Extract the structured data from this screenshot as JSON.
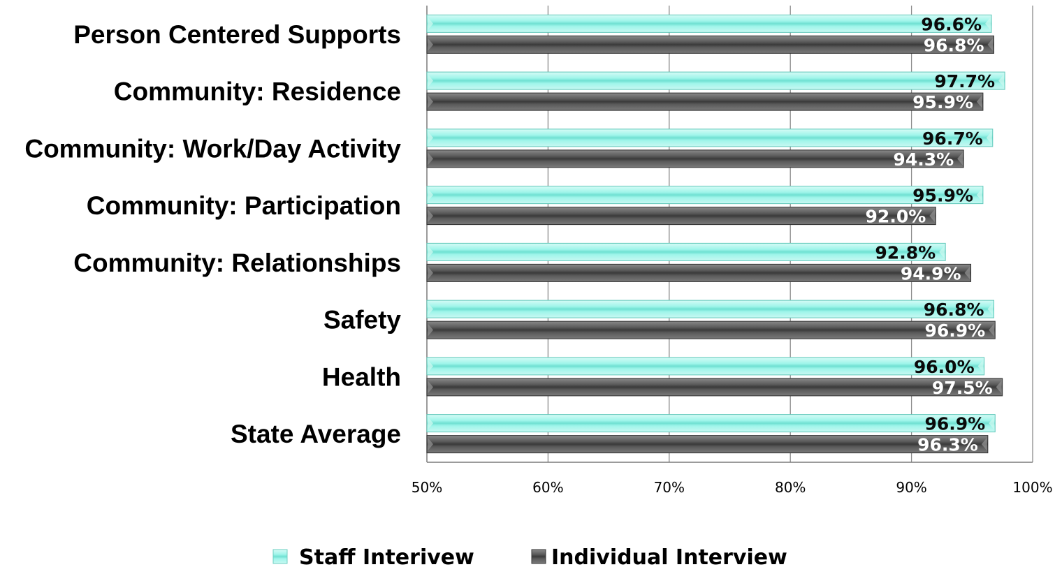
{
  "chart_data": {
    "type": "bar",
    "orientation": "horizontal",
    "categories": [
      "Person Centered Supports",
      "Community:  Residence",
      "Community: Work/Day Activity",
      "Community: Participation",
      "Community: Relationships",
      "Safety",
      "Health",
      "State Average"
    ],
    "series": [
      {
        "name": "Staff Interivew",
        "color": "#8ff0e4",
        "values": [
          96.6,
          97.7,
          96.7,
          95.9,
          92.8,
          96.8,
          96.0,
          96.9
        ],
        "labels": [
          "96.6%",
          "97.7%",
          "96.7%",
          "95.9%",
          "92.8%",
          "96.8%",
          "96.0%",
          "96.9%"
        ]
      },
      {
        "name": "Individual Interview",
        "color": "#5e5e5e",
        "values": [
          96.8,
          95.9,
          94.3,
          92.0,
          94.9,
          96.9,
          97.5,
          96.3
        ],
        "labels": [
          "96.8%",
          "95.9%",
          "94.3%",
          "92.0%",
          "94.9%",
          "96.9%",
          "97.5%",
          "96.3%"
        ]
      }
    ],
    "xlim": [
      50,
      100
    ],
    "x_ticks": [
      50,
      60,
      70,
      80,
      90,
      100
    ],
    "x_tick_labels": [
      "50%",
      "60%",
      "70%",
      "80%",
      "90%",
      "100%"
    ],
    "grid": true,
    "legend_position": "bottom",
    "title": "",
    "xlabel": "",
    "ylabel": ""
  }
}
